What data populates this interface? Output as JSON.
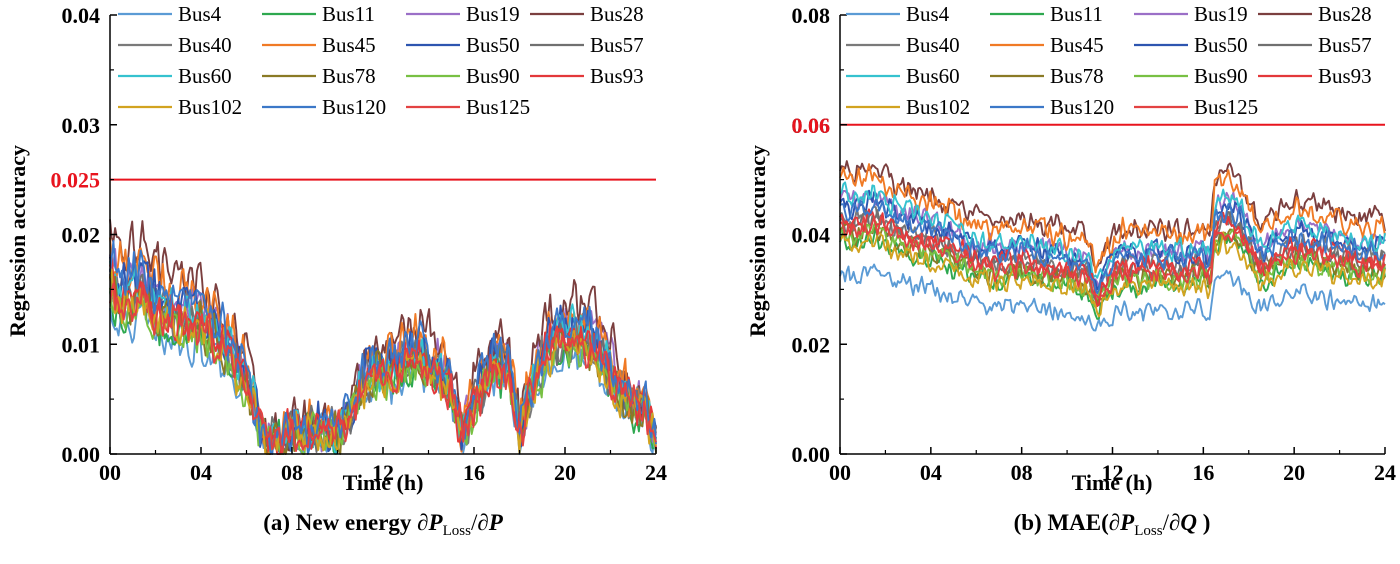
{
  "chart_data": [
    {
      "type": "line",
      "id": "a",
      "caption_prefix": "(a) New energy ",
      "caption_math": [
        "∂",
        "P",
        "Loss",
        "/∂",
        "P"
      ],
      "xlabel": "Time (h)",
      "ylabel": "Regression accuracy",
      "xlim": [
        0,
        24
      ],
      "ylim": [
        0,
        0.04
      ],
      "x_ticks": [
        "00",
        "04",
        "08",
        "12",
        "16",
        "20",
        "24"
      ],
      "y_ticks": [
        "0.00",
        "0.01",
        "0.02",
        "0.03",
        "0.04"
      ],
      "threshold": {
        "value": 0.025,
        "label": "0.025",
        "color": "#e8141e"
      },
      "series": [
        {
          "name": "Bus4",
          "color": "#5b9bd5",
          "scale": 0.72
        },
        {
          "name": "Bus11",
          "color": "#2ea84f",
          "scale": 0.8
        },
        {
          "name": "Bus19",
          "color": "#9b6fc7",
          "scale": 0.98
        },
        {
          "name": "Bus28",
          "color": "#7b3f3f",
          "scale": 1.15
        },
        {
          "name": "Bus40",
          "color": "#7a7a7a",
          "scale": 0.9
        },
        {
          "name": "Bus45",
          "color": "#f07a25",
          "scale": 1.05
        },
        {
          "name": "Bus50",
          "color": "#2d55b0",
          "scale": 0.95
        },
        {
          "name": "Bus57",
          "color": "#707070",
          "scale": 0.86
        },
        {
          "name": "Bus60",
          "color": "#35c2cf",
          "scale": 0.92
        },
        {
          "name": "Bus78",
          "color": "#8a7a25",
          "scale": 0.84
        },
        {
          "name": "Bus90",
          "color": "#78c043",
          "scale": 0.78
        },
        {
          "name": "Bus93",
          "color": "#e3383a",
          "scale": 0.88
        },
        {
          "name": "Bus102",
          "color": "#d2a320",
          "scale": 0.82
        },
        {
          "name": "Bus120",
          "color": "#3c78c8",
          "scale": 1.0
        },
        {
          "name": "Bus125",
          "color": "#e34242",
          "scale": 0.83
        }
      ],
      "base_profile": {
        "x": [
          0,
          0.5,
          1,
          1.5,
          2,
          3,
          4,
          5,
          6,
          6.7,
          7,
          8,
          9,
          10,
          10.5,
          11,
          11.5,
          12,
          12.5,
          13,
          13.5,
          14,
          14.5,
          15,
          15.5,
          16,
          16.5,
          17,
          17.5,
          18,
          18.5,
          19,
          19.5,
          20,
          20.5,
          21,
          21.5,
          22,
          22.5,
          23,
          23.5,
          24
        ],
        "y": [
          0.018,
          0.016,
          0.0165,
          0.017,
          0.015,
          0.014,
          0.014,
          0.0115,
          0.0075,
          0.002,
          0.001,
          0.0025,
          0.0025,
          0.0022,
          0.004,
          0.0065,
          0.0085,
          0.0085,
          0.009,
          0.0095,
          0.0105,
          0.0095,
          0.0085,
          0.007,
          0.002,
          0.0055,
          0.0075,
          0.0095,
          0.0085,
          0.002,
          0.0065,
          0.0095,
          0.0115,
          0.012,
          0.0125,
          0.012,
          0.0105,
          0.0085,
          0.0065,
          0.005,
          0.0045,
          0.0015
        ]
      },
      "noise": 0.0022
    },
    {
      "type": "line",
      "id": "b",
      "caption_prefix": "(b) MAE(",
      "caption_math": [
        "∂",
        "P",
        "Loss",
        "/∂",
        "Q",
        " )"
      ],
      "xlabel": "Time (h)",
      "ylabel": "Regression accuracy",
      "xlim": [
        0,
        24
      ],
      "ylim": [
        0,
        0.08
      ],
      "x_ticks": [
        "00",
        "04",
        "08",
        "12",
        "16",
        "20",
        "24"
      ],
      "y_ticks": [
        "0.00",
        "0.02",
        "0.04",
        "0.06",
        "0.08"
      ],
      "threshold": {
        "value": 0.06,
        "label": "0.06",
        "color": "#e8141e"
      },
      "series": [
        {
          "name": "Bus4",
          "color": "#5b9bd5",
          "scale": 0.7
        },
        {
          "name": "Bus11",
          "color": "#2ea84f",
          "scale": 0.83
        },
        {
          "name": "Bus19",
          "color": "#9b6fc7",
          "scale": 0.99
        },
        {
          "name": "Bus28",
          "color": "#7b3f3f",
          "scale": 1.1
        },
        {
          "name": "Bus40",
          "color": "#7a7a7a",
          "scale": 0.92
        },
        {
          "name": "Bus45",
          "color": "#f07a25",
          "scale": 1.07
        },
        {
          "name": "Bus50",
          "color": "#2d55b0",
          "scale": 0.97
        },
        {
          "name": "Bus57",
          "color": "#707070",
          "scale": 0.9
        },
        {
          "name": "Bus60",
          "color": "#35c2cf",
          "scale": 1.0
        },
        {
          "name": "Bus78",
          "color": "#8a7a25",
          "scale": 0.86
        },
        {
          "name": "Bus90",
          "color": "#78c043",
          "scale": 0.85
        },
        {
          "name": "Bus93",
          "color": "#e3383a",
          "scale": 0.91
        },
        {
          "name": "Bus102",
          "color": "#d2a320",
          "scale": 0.82
        },
        {
          "name": "Bus120",
          "color": "#3c78c8",
          "scale": 0.95
        },
        {
          "name": "Bus125",
          "color": "#e34242",
          "scale": 0.88
        }
      ],
      "base_profile": {
        "x": [
          0,
          0.5,
          1,
          1.5,
          2,
          3,
          4,
          5,
          6,
          7,
          8,
          9,
          10,
          11,
          11.2,
          11.5,
          12,
          12.5,
          13,
          14,
          15,
          16,
          16.3,
          16.5,
          17,
          17.5,
          18,
          18.5,
          19,
          20,
          21,
          22,
          23,
          24
        ],
        "y": [
          0.048,
          0.046,
          0.047,
          0.048,
          0.046,
          0.044,
          0.043,
          0.041,
          0.039,
          0.038,
          0.039,
          0.038,
          0.037,
          0.036,
          0.031,
          0.033,
          0.036,
          0.038,
          0.037,
          0.038,
          0.037,
          0.038,
          0.036,
          0.045,
          0.047,
          0.046,
          0.042,
          0.038,
          0.039,
          0.042,
          0.041,
          0.04,
          0.039,
          0.039
        ]
      },
      "noise": 0.0022
    }
  ]
}
